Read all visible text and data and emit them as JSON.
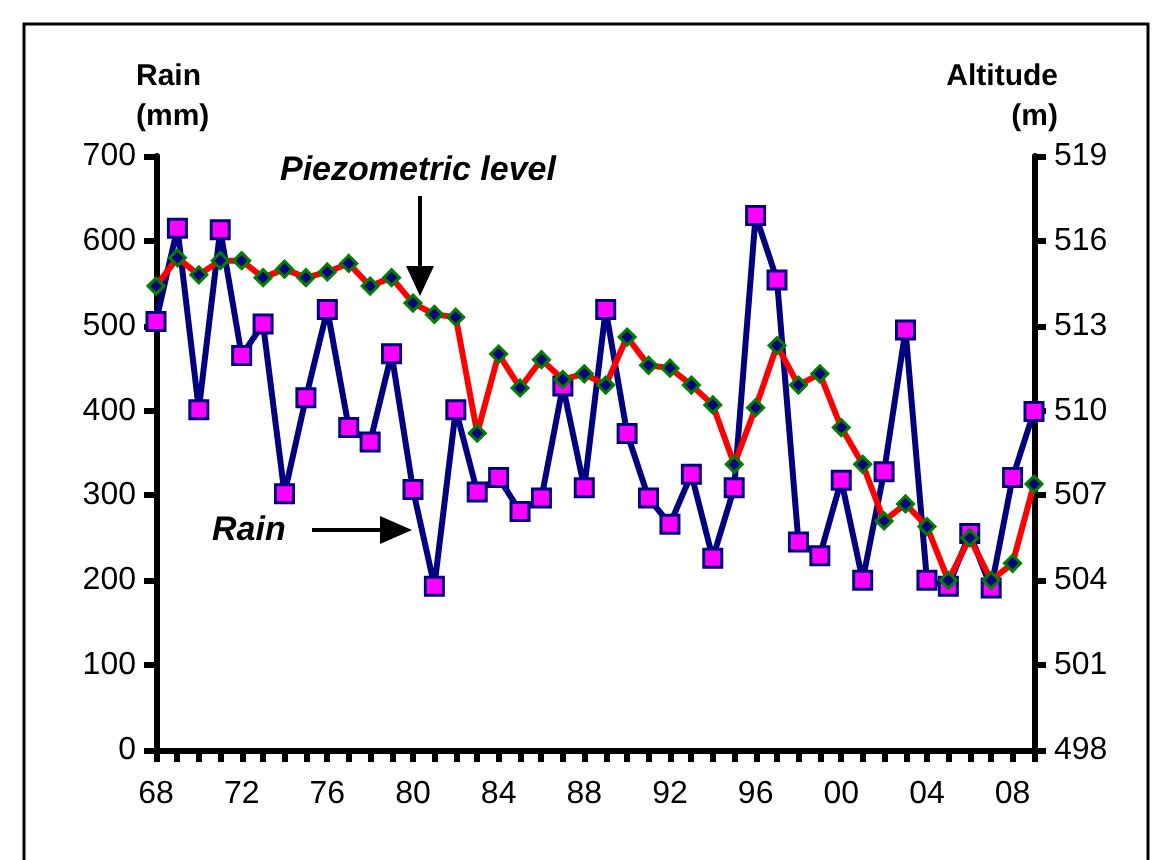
{
  "chart_data": {
    "type": "line",
    "ylabel": "Rain\n(mm)",
    "y2label": "Altitude\n(m)",
    "categories": [
      "68",
      null,
      null,
      null,
      "72",
      null,
      null,
      null,
      "76",
      null,
      null,
      null,
      "80",
      null,
      null,
      null,
      "84",
      null,
      null,
      null,
      "88",
      null,
      null,
      null,
      "92",
      null,
      null,
      null,
      "96",
      null,
      null,
      null,
      "00",
      null,
      null,
      null,
      "04",
      null,
      null,
      null,
      "08",
      null
    ],
    "series": [
      {
        "name": "Rain",
        "color": "#000080",
        "marker": "square",
        "values": [
          505,
          615,
          401,
          613,
          465,
          502,
          302,
          415,
          519,
          380,
          363,
          467,
          307,
          193,
          401,
          304,
          321,
          281,
          297,
          429,
          309,
          519,
          373,
          297,
          266,
          325,
          226,
          309,
          630,
          554,
          245,
          229,
          318,
          200,
          328,
          495,
          200,
          193,
          255,
          191,
          321,
          399
        ]
      },
      {
        "name": "Piezometric level",
        "color": "#ff0000",
        "marker": "diamond",
        "axis": "y2",
        "values": [
          514.4,
          515.4,
          514.8,
          515.3,
          515.3,
          514.7,
          515.0,
          514.7,
          514.9,
          515.2,
          514.4,
          514.7,
          513.8,
          513.4,
          513.3,
          509.2,
          512.0,
          510.8,
          511.8,
          511.1,
          511.3,
          510.9,
          512.6,
          511.6,
          511.5,
          510.9,
          510.2,
          508.1,
          510.1,
          512.3,
          510.9,
          511.3,
          509.4,
          508.1,
          506.1,
          506.7,
          505.9,
          504.0,
          505.5,
          504.0,
          504.6,
          507.4
        ]
      }
    ],
    "ylim": [
      0,
      700
    ],
    "yticks": [
      0,
      100,
      200,
      300,
      400,
      500,
      600,
      700
    ],
    "y2lim": [
      498,
      519
    ],
    "y2ticks": [
      498,
      501,
      504,
      507,
      510,
      513,
      516,
      519
    ],
    "grid": false,
    "legend": false
  }
}
